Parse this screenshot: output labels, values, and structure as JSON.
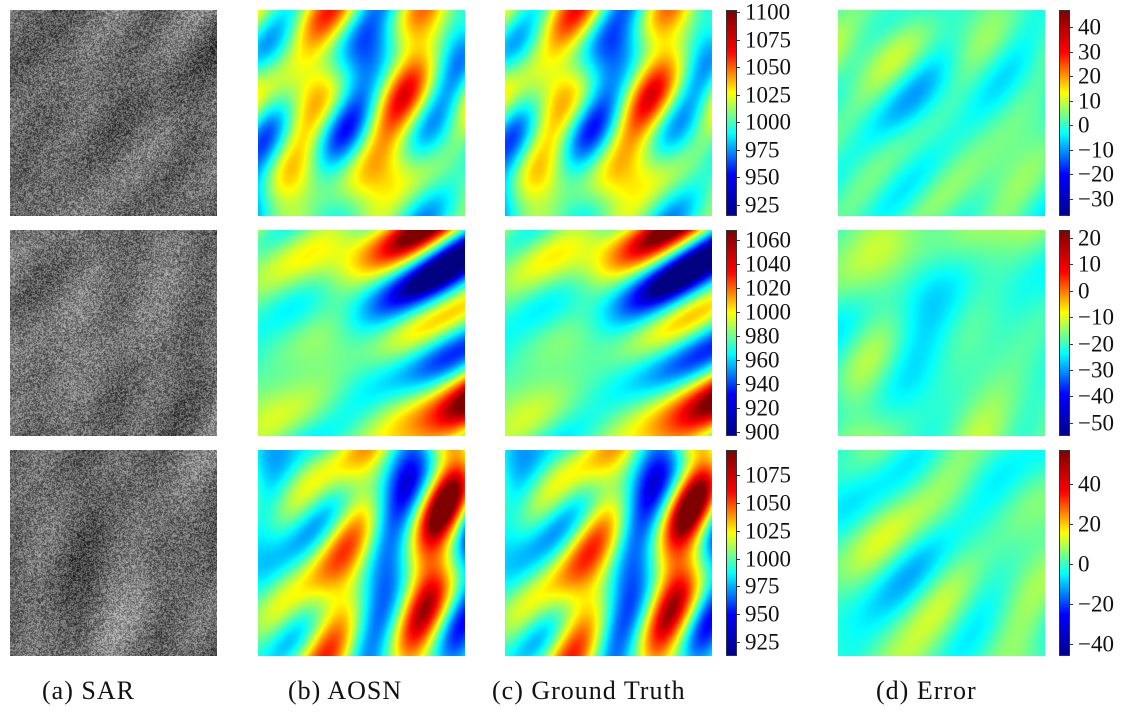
{
  "captions": [
    "(a) SAR",
    "(b) AOSN",
    "(c) Ground Truth",
    "(d) Error"
  ],
  "colormap": [
    "#00008f",
    "#0000ff",
    "#00ffff",
    "#ffff00",
    "#ff0000",
    "#800000"
  ],
  "rows": [
    {
      "main_range": [
        915,
        1102
      ],
      "main_ticks": [
        "1100",
        "1075",
        "1050",
        "1025",
        "1000",
        "975",
        "950",
        "925"
      ],
      "err_range": [
        -37,
        47
      ],
      "err_ticks": [
        "40",
        "30",
        "20",
        "10",
        "0",
        "−10",
        "−20",
        "−30"
      ]
    },
    {
      "main_range": [
        897,
        1068
      ],
      "main_ticks": [
        "1060",
        "1040",
        "1020",
        "1000",
        "980",
        "960",
        "940",
        "920",
        "900"
      ],
      "err_range": [
        -55,
        23
      ],
      "err_ticks": [
        "20",
        "10",
        "0",
        "−10",
        "−20",
        "−30",
        "−40",
        "−50"
      ]
    },
    {
      "main_range": [
        912,
        1098
      ],
      "main_ticks": [
        "1075",
        "1050",
        "1025",
        "1000",
        "975",
        "950",
        "925"
      ],
      "err_range": [
        -46,
        57
      ],
      "err_ticks": [
        "40",
        "20",
        "0",
        "−20",
        "−40"
      ]
    }
  ]
}
